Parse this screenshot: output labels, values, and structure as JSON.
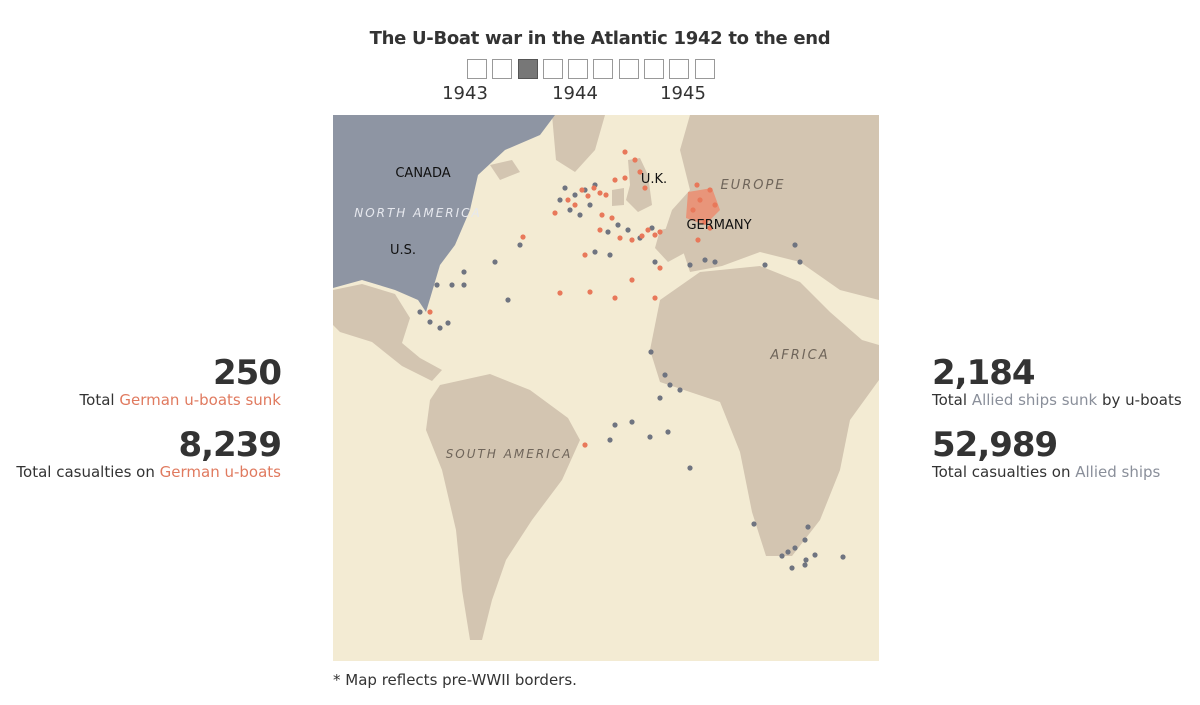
{
  "title": "The U-Boat war in the Atlantic 1942 to the end",
  "timeline": {
    "labels": [
      "1943",
      "1944",
      "1945"
    ]
  },
  "map": {
    "labels": [
      "CANADA",
      "NORTH AMERICA",
      "U.S.",
      "U.K.",
      "EUROPE",
      "GERMANY",
      "AFRICA",
      "SOUTH AMERICA"
    ]
  },
  "left_stats": [
    {
      "value": "250",
      "before": "Total",
      "highlight": "German u-boats sunk"
    },
    {
      "value": "8,239",
      "before": "Total casualties on",
      "highlight": "German u-boats"
    }
  ],
  "right_stats": [
    {
      "value": "2,184",
      "before": "Total",
      "highlight": "Allied ships sunk",
      "after": "by u-boats"
    },
    {
      "value": "52,989",
      "before": "Total casualties on",
      "highlight": "Allied ships"
    }
  ],
  "footnote": "* Map reflects pre-WWII borders."
}
